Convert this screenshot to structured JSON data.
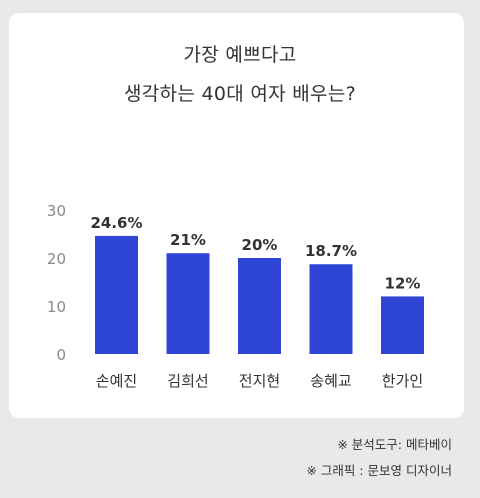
{
  "chart_title_line1": "가장 예쁘다고",
  "chart_title_line2": "생각하는 40대 여자 배우는?",
  "chart_data": {
    "type": "bar",
    "title": "가장 예쁘다고 생각하는 40대 여자 배우는?",
    "categories": [
      "손예진",
      "김희선",
      "전지현",
      "송혜교",
      "한가인"
    ],
    "values": [
      24.6,
      21,
      20,
      18.7,
      12
    ],
    "value_labels": [
      "24.6%",
      "21%",
      "20%",
      "18.7%",
      "12%"
    ],
    "yticks": [
      0,
      10,
      20,
      30
    ],
    "ylim": [
      0,
      30
    ],
    "xlabel": "",
    "ylabel": "",
    "bar_color": "#2f45d6",
    "grid": false,
    "legend": "none"
  },
  "credits": {
    "line1": "※ 분석도구: 메타베이",
    "line2": "※ 그래픽 : 문보영 디자이너"
  }
}
